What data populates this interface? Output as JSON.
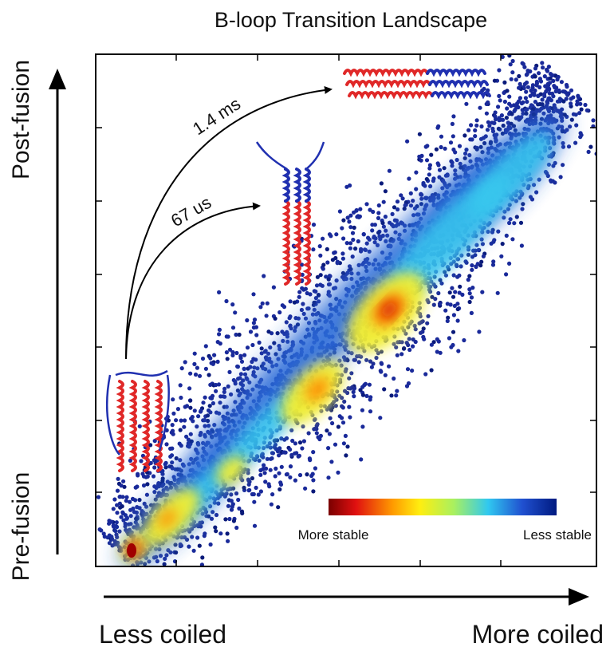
{
  "chart_data": {
    "type": "density",
    "title": "B-loop Transition Landscape",
    "x_axis_labels": {
      "start": "Less coiled",
      "end": "More coiled"
    },
    "y_axis_labels": {
      "start": "Pre-fusion",
      "end": "Post-fusion"
    },
    "annotations": [
      "1.4 ms",
      "67 us"
    ],
    "colorbar": {
      "low_label": "More stable",
      "high_label": "Less stable"
    }
  }
}
